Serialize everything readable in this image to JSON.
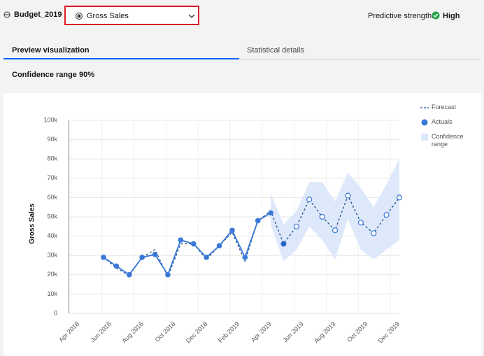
{
  "header": {
    "title": "Budget_2019 /",
    "dropdown": "Gross Sales",
    "strength_label": "Predictive strength:",
    "strength_value": "High"
  },
  "tabs": [
    "Preview visualization",
    "Statistical details"
  ],
  "subtitle": "Confidence range 90%",
  "chart_data": {
    "type": "line",
    "ylabel": "Gross Sales",
    "categories": [
      null,
      null,
      null,
      null,
      null,
      null,
      null,
      null,
      null,
      null,
      null,
      null,
      null,
      null,
      null,
      null,
      null,
      null,
      null,
      null,
      null,
      null,
      null,
      null
    ],
    "xtick_labels": [
      "Apr 2018",
      "Jun 2018",
      "Aug 2018",
      "Oct 2018",
      "Dec 2018",
      "Feb 2019",
      "Apr 2019",
      "Jun 2019",
      "Aug 2019",
      "Oct 2019",
      "Dec 2019"
    ],
    "ylim": [
      0,
      100000
    ],
    "yticks": [
      0,
      {
        "value": 10000,
        "label": "10k"
      },
      {
        "value": 20000,
        "label": "20k"
      },
      {
        "value": 30000,
        "label": "30k"
      },
      {
        "value": 40000,
        "label": "40k"
      },
      {
        "value": 50000,
        "label": "50k"
      },
      {
        "value": 60000,
        "label": "60k"
      },
      {
        "value": 70000,
        "label": "70k"
      },
      {
        "value": 80000,
        "label": "80k"
      },
      {
        "value": 90000,
        "label": "90k"
      },
      {
        "value": 100000,
        "label": "100k"
      }
    ],
    "grid": true,
    "legend": "right",
    "series": [
      {
        "name": "Forecast",
        "color": "#1c4f8c",
        "values": [
          29000,
          23500,
          19500,
          29000,
          33000,
          19000,
          36000,
          36000,
          28000,
          35000,
          42000,
          27000,
          48000,
          53000,
          36000,
          45000,
          59000,
          50000,
          43000,
          61000,
          47000,
          41500,
          51000,
          60000
        ]
      },
      {
        "name": "Actuals",
        "color": "#3a78d8",
        "values": [
          29000,
          24500,
          20000,
          29000,
          30500,
          20000,
          38000,
          36000,
          29000,
          35000,
          43000,
          29000,
          48000,
          52000,
          null,
          null,
          null,
          null,
          null,
          null,
          null,
          null,
          null,
          null
        ]
      },
      {
        "name": "Confidence range",
        "color": "#dde8fa",
        "upper": [
          null,
          null,
          null,
          null,
          null,
          null,
          null,
          null,
          null,
          null,
          null,
          null,
          null,
          62000,
          46000,
          53000,
          68000,
          68000,
          58000,
          73000,
          65000,
          55000,
          67000,
          80000
        ],
        "lower": [
          null,
          null,
          null,
          null,
          null,
          null,
          null,
          null,
          null,
          null,
          null,
          null,
          null,
          46000,
          27000,
          33000,
          45000,
          38000,
          28000,
          49000,
          33000,
          28000,
          33000,
          38000
        ]
      }
    ]
  }
}
